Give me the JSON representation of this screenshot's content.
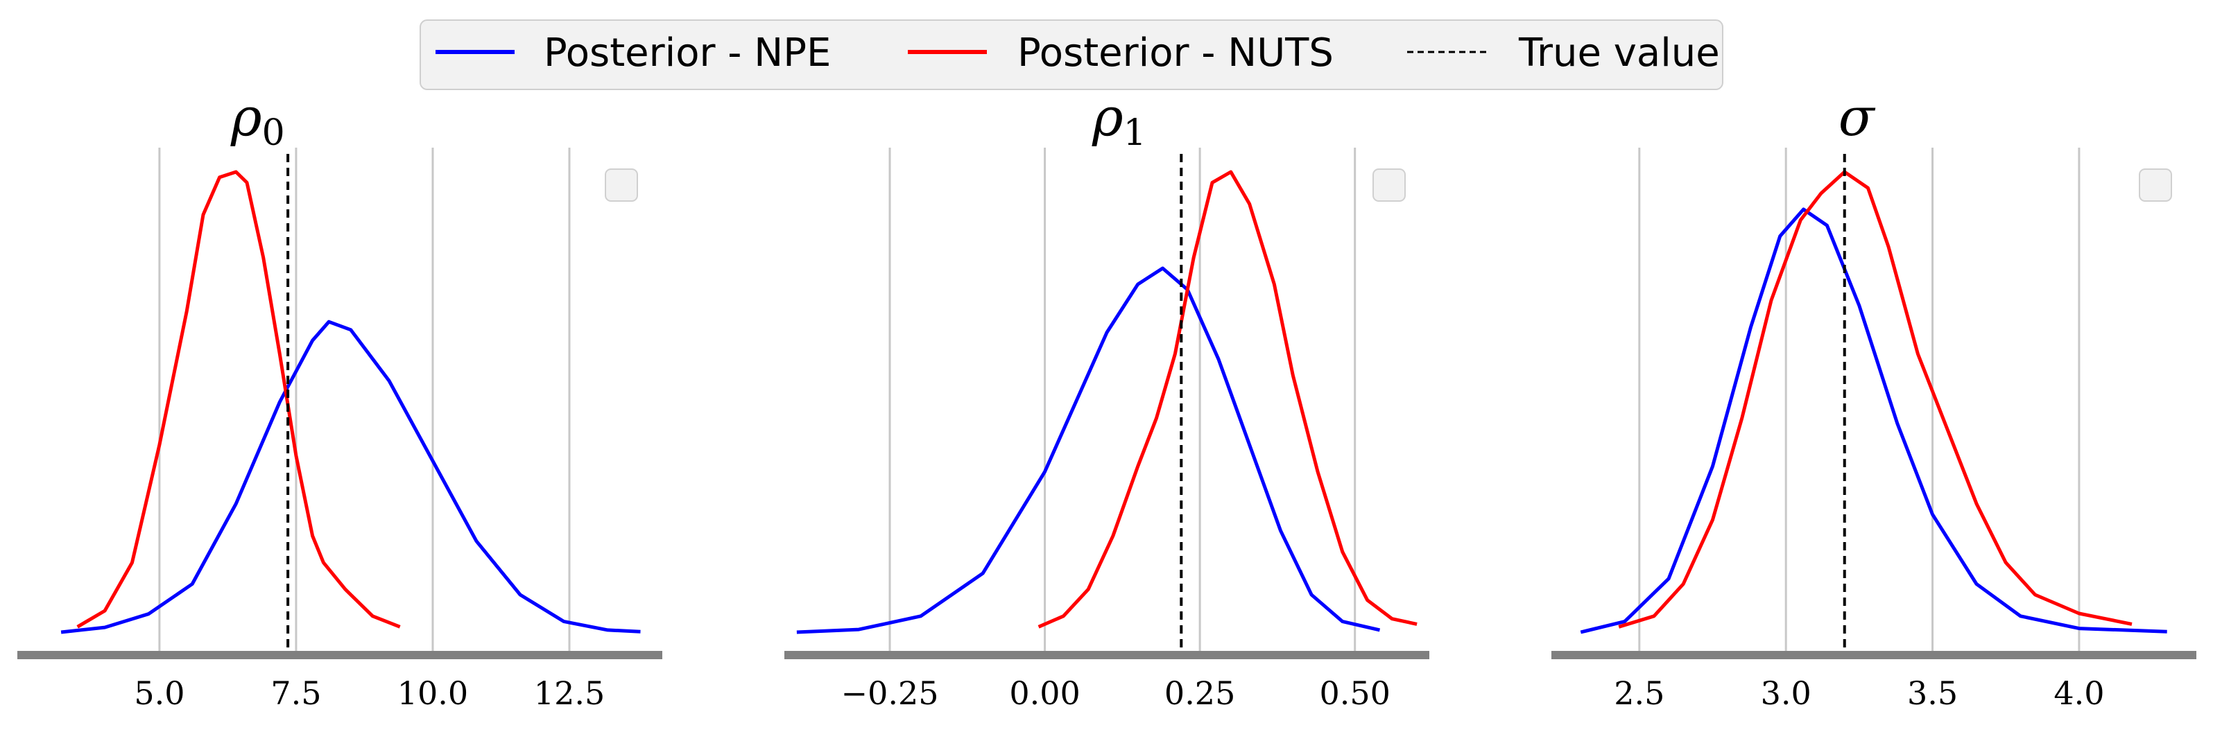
{
  "legend": {
    "items": [
      {
        "label": "Posterior - NPE",
        "color": "#0000ff",
        "style": "solid"
      },
      {
        "label": "Posterior - NUTS",
        "color": "#ff0000",
        "style": "solid"
      },
      {
        "label": "True value",
        "color": "#000000",
        "style": "dashed"
      }
    ]
  },
  "chart_data": [
    {
      "type": "line",
      "title": "ρ",
      "title_sub": "0",
      "xlim": [
        2.4,
        14.2
      ],
      "xticks": [
        5.0,
        7.5,
        10.0,
        12.5
      ],
      "xtick_labels": [
        "5.0",
        "7.5",
        "10.0",
        "12.5"
      ],
      "grid": "vertical",
      "true_value": 7.35,
      "series": [
        {
          "name": "Posterior - NPE",
          "color": "#0000ff",
          "x": [
            3.2,
            4.0,
            4.8,
            5.6,
            6.4,
            7.2,
            7.8,
            8.1,
            8.5,
            9.2,
            10.0,
            10.8,
            11.6,
            12.4,
            13.2,
            13.8
          ],
          "y": [
            0.0,
            0.009,
            0.034,
            0.09,
            0.24,
            0.43,
            0.545,
            0.58,
            0.565,
            0.47,
            0.32,
            0.17,
            0.07,
            0.02,
            0.004,
            0.001
          ]
        },
        {
          "name": "Posterior - NUTS",
          "color": "#ff0000",
          "x": [
            3.5,
            4.0,
            4.5,
            5.0,
            5.5,
            5.8,
            6.1,
            6.4,
            6.6,
            6.9,
            7.2,
            7.5,
            7.8,
            8.0,
            8.4,
            8.9,
            9.4
          ],
          "y": [
            0.01,
            0.04,
            0.13,
            0.35,
            0.6,
            0.78,
            0.85,
            0.86,
            0.84,
            0.7,
            0.52,
            0.33,
            0.18,
            0.13,
            0.08,
            0.03,
            0.01
          ]
        }
      ]
    },
    {
      "type": "line",
      "title": "ρ",
      "title_sub": "1",
      "xlim": [
        -0.42,
        0.62
      ],
      "xticks": [
        -0.25,
        0.0,
        0.25,
        0.5
      ],
      "xtick_labels": [
        "−0.25",
        "0.00",
        "0.25",
        "0.50"
      ],
      "grid": "vertical",
      "true_value": 0.22,
      "series": [
        {
          "name": "Posterior - NPE",
          "color": "#0000ff",
          "x": [
            -0.4,
            -0.3,
            -0.2,
            -0.1,
            0.0,
            0.05,
            0.1,
            0.15,
            0.19,
            0.23,
            0.28,
            0.33,
            0.38,
            0.43,
            0.48,
            0.54
          ],
          "y": [
            0.0,
            0.005,
            0.03,
            0.11,
            0.3,
            0.43,
            0.56,
            0.65,
            0.68,
            0.64,
            0.51,
            0.35,
            0.19,
            0.07,
            0.02,
            0.004
          ]
        },
        {
          "name": "Posterior - NUTS",
          "color": "#ff0000",
          "x": [
            -0.01,
            0.03,
            0.07,
            0.11,
            0.15,
            0.18,
            0.21,
            0.24,
            0.27,
            0.3,
            0.33,
            0.37,
            0.4,
            0.44,
            0.48,
            0.52,
            0.56,
            0.6
          ],
          "y": [
            0.01,
            0.03,
            0.08,
            0.18,
            0.31,
            0.4,
            0.52,
            0.7,
            0.84,
            0.86,
            0.8,
            0.65,
            0.48,
            0.3,
            0.15,
            0.06,
            0.025,
            0.015
          ]
        }
      ]
    },
    {
      "type": "line",
      "title": "σ",
      "title_sub": "",
      "xlim": [
        2.2,
        4.4
      ],
      "xticks": [
        2.5,
        3.0,
        3.5,
        4.0
      ],
      "xtick_labels": [
        "2.5",
        "3.0",
        "3.5",
        "4.0"
      ],
      "grid": "vertical",
      "true_value": 3.2,
      "series": [
        {
          "name": "Posterior - NPE",
          "color": "#0000ff",
          "x": [
            2.3,
            2.45,
            2.6,
            2.75,
            2.88,
            2.98,
            3.06,
            3.14,
            3.25,
            3.38,
            3.5,
            3.65,
            3.8,
            4.0,
            4.3
          ],
          "y": [
            0.0,
            0.02,
            0.1,
            0.31,
            0.57,
            0.74,
            0.79,
            0.76,
            0.61,
            0.39,
            0.22,
            0.09,
            0.03,
            0.007,
            0.001
          ]
        },
        {
          "name": "Posterior - NUTS",
          "color": "#ff0000",
          "x": [
            2.43,
            2.55,
            2.65,
            2.75,
            2.85,
            2.95,
            3.05,
            3.12,
            3.2,
            3.28,
            3.35,
            3.45,
            3.55,
            3.65,
            3.75,
            3.85,
            4.0,
            4.18
          ],
          "y": [
            0.01,
            0.03,
            0.09,
            0.21,
            0.4,
            0.62,
            0.77,
            0.82,
            0.86,
            0.83,
            0.72,
            0.52,
            0.38,
            0.24,
            0.13,
            0.07,
            0.035,
            0.015
          ]
        }
      ]
    }
  ]
}
